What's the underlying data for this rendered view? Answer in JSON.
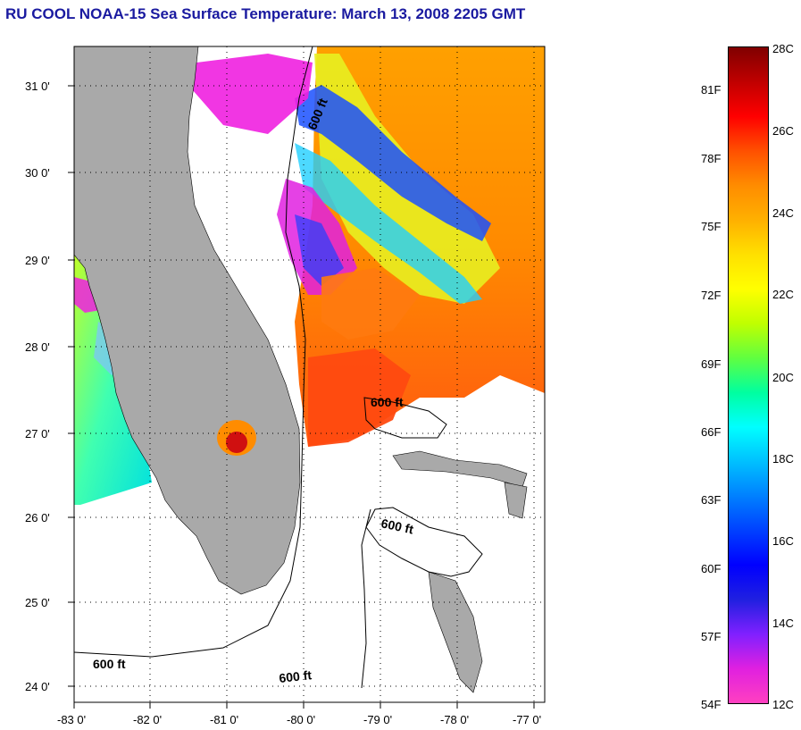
{
  "title": "RU COOL  NOAA-15  Sea Surface Temperature:  March 13, 2008 2205 GMT",
  "colors": {
    "land": "#a9a9a9",
    "title": "#1a1aa0",
    "no_data": "#ffffff"
  },
  "lat_labels": [
    "31 0'",
    "30 0'",
    "29 0'",
    "28 0'",
    "27 0'",
    "26 0'",
    "25 0'",
    "24 0'"
  ],
  "lon_labels": [
    "-83 0'",
    "-82 0'",
    "-81 0'",
    "-80 0'",
    "-79 0'",
    "-78 0'",
    "-77 0'"
  ],
  "contours": {
    "label": "600 ft"
  },
  "colorbar": {
    "celsius": [
      "28C",
      "26C",
      "24C",
      "22C",
      "20C",
      "18C",
      "16C",
      "14C",
      "12C"
    ],
    "fahrenheit": [
      "81F",
      "78F",
      "75F",
      "72F",
      "69F",
      "66F",
      "63F",
      "60F",
      "57F",
      "54F"
    ],
    "range_c": [
      12,
      28
    ],
    "gradient": [
      "#800000",
      "#c00000",
      "#ff0000",
      "#ff5000",
      "#ff8c00",
      "#ffb000",
      "#ffe000",
      "#ffff00",
      "#c0ff00",
      "#60ff40",
      "#00ffa0",
      "#00ffff",
      "#00c0ff",
      "#0080ff",
      "#0040ff",
      "#0000ff",
      "#2020e0",
      "#8020ff",
      "#e020e0",
      "#ff40c0"
    ]
  }
}
